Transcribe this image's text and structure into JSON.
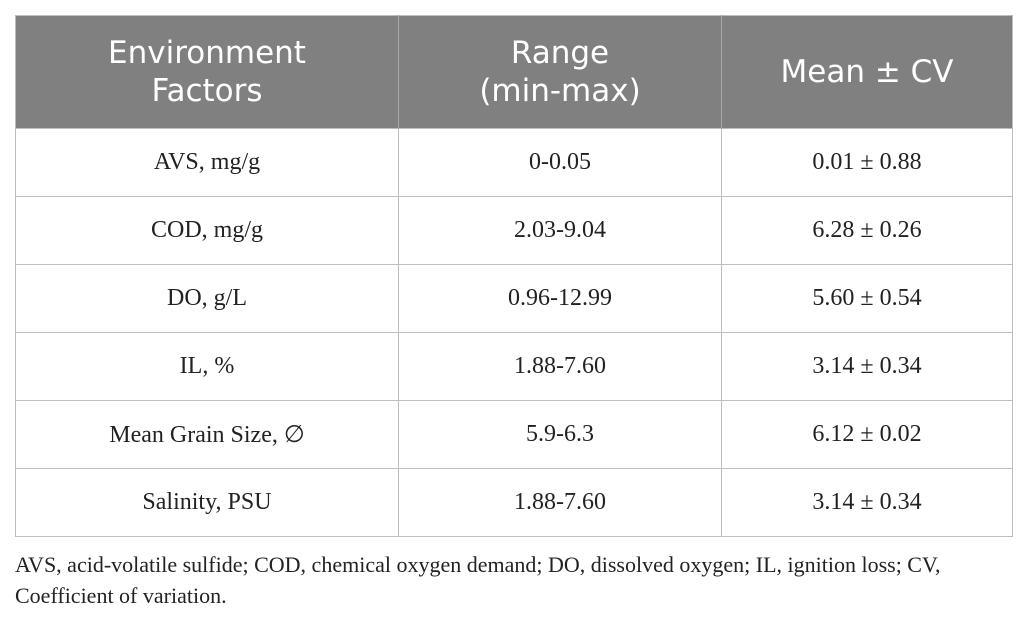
{
  "table": {
    "headers": [
      {
        "line1": "Environment",
        "line2": "Factors"
      },
      {
        "line1": "Range",
        "line2": "(min-max)"
      },
      {
        "line1": "Mean ± CV",
        "line2": ""
      }
    ],
    "rows": [
      {
        "factor": "AVS, mg/g",
        "range": "0-0.05",
        "mean_cv": "0.01 ± 0.88"
      },
      {
        "factor": "COD, mg/g",
        "range": "2.03-9.04",
        "mean_cv": "6.28 ± 0.26"
      },
      {
        "factor": "DO, g/L",
        "range": "0.96-12.99",
        "mean_cv": "5.60 ± 0.54"
      },
      {
        "factor": "IL, %",
        "range": "1.88-7.60",
        "mean_cv": "3.14 ± 0.34"
      },
      {
        "factor": "Mean Grain Size, ∅",
        "range": "5.9-6.3",
        "mean_cv": "6.12 ± 0.02"
      },
      {
        "factor": "Salinity, PSU",
        "range": "1.88-7.60",
        "mean_cv": "3.14 ± 0.34"
      }
    ]
  },
  "footnote": "AVS, acid-volatile sulfide; COD, chemical oxygen demand; DO, dissolved oxygen; IL, ignition loss; CV, Coefficient of variation.",
  "colors": {
    "header_background": "#808080",
    "header_text": "#ffffff",
    "border": "#bdbdbd"
  }
}
